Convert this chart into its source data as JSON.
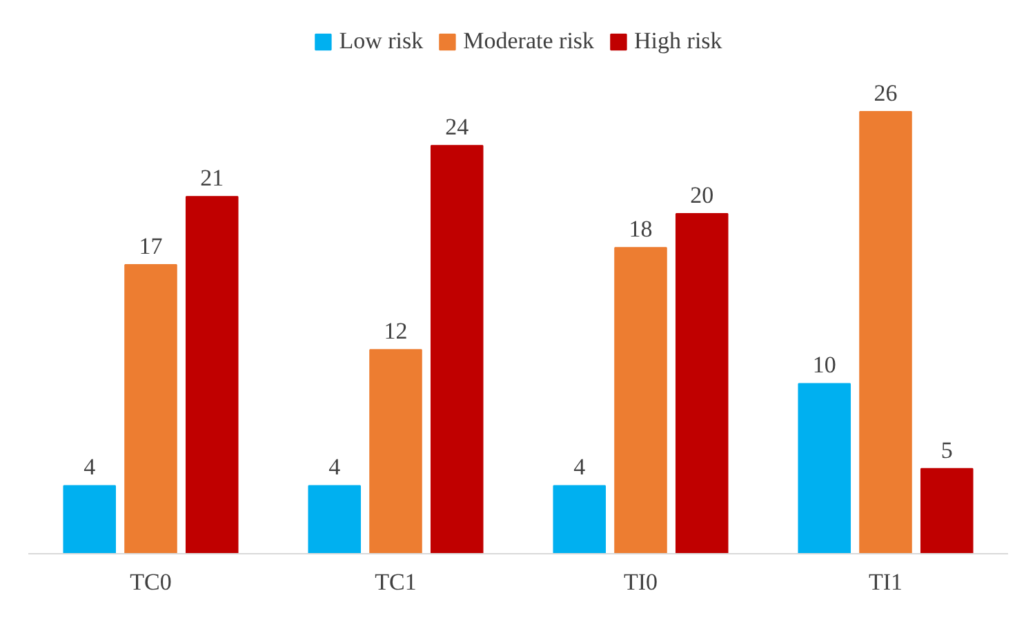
{
  "chart_data": {
    "type": "bar",
    "categories": [
      "TC0",
      "TC1",
      "TI0",
      "TI1"
    ],
    "series": [
      {
        "name": "Low risk",
        "color": "#00b0f0",
        "values": [
          4,
          4,
          4,
          10
        ]
      },
      {
        "name": "Moderate risk",
        "color": "#ed7d31",
        "values": [
          17,
          12,
          18,
          26
        ]
      },
      {
        "name": "High risk",
        "color": "#c00000",
        "values": [
          21,
          24,
          20,
          5
        ]
      }
    ],
    "data_labels": true,
    "legend": "top",
    "grid": false
  }
}
